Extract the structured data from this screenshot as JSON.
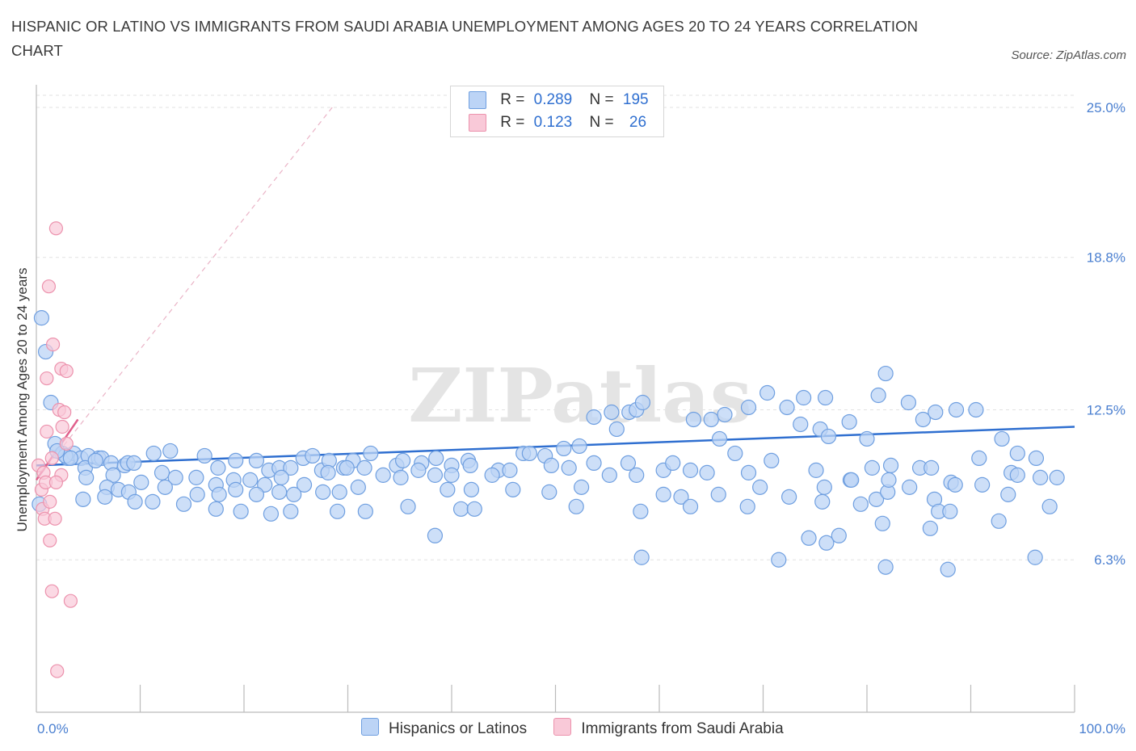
{
  "title": "HISPANIC OR LATINO VS IMMIGRANTS FROM SAUDI ARABIA UNEMPLOYMENT AMONG AGES 20 TO 24 YEARS CORRELATION CHART",
  "source": "Source: ZipAtlas.com",
  "watermark": "ZIPatlas",
  "legend_top": {
    "rows": [
      {
        "r_label": "R =",
        "r_value": "0.289",
        "n_label": "N =",
        "n_value": "195"
      },
      {
        "r_label": "R =",
        "r_value": "0.123",
        "n_label": "N =",
        "n_value": "26"
      }
    ]
  },
  "colors": {
    "blue_fill": "#bcd4f6",
    "blue_stroke": "#6f9fe0",
    "blue_line": "#2f6fd0",
    "pink_fill": "#f9c9d8",
    "pink_stroke": "#ec92ad",
    "pink_line": "#e0608c",
    "tick_text": "#4a7fd0",
    "grid": "#e2e2e2"
  },
  "chart_data": {
    "type": "scatter",
    "xlabel": "",
    "ylabel": "Unemployment Among Ages 20 to 24 years",
    "xlim": [
      0,
      100
    ],
    "ylim": [
      0,
      25.5
    ],
    "x_tick_labels": [
      "0.0%",
      "100.0%"
    ],
    "y_ticks": [
      6.3,
      12.5,
      18.8,
      25.0
    ],
    "y_tick_labels": [
      "6.3%",
      "12.5%",
      "18.8%",
      "25.0%"
    ],
    "grid": "horizontal dashed",
    "legend": "bottom-center",
    "series": [
      {
        "name": "Hispanics or Latinos",
        "color": "#bcd4f6",
        "trend": {
          "x": [
            0,
            100
          ],
          "y": [
            10.2,
            11.8
          ]
        },
        "points": [
          [
            0.5,
            16.3
          ],
          [
            0.9,
            14.9
          ],
          [
            1.4,
            12.8
          ],
          [
            1.8,
            11.1
          ],
          [
            2.5,
            10.7
          ],
          [
            3.0,
            10.5
          ],
          [
            3.6,
            10.7
          ],
          [
            2.8,
            10.6
          ],
          [
            4.3,
            10.5
          ],
          [
            5.0,
            10.6
          ],
          [
            4.7,
            10.1
          ],
          [
            6.0,
            10.5
          ],
          [
            6.3,
            10.5
          ],
          [
            7.2,
            10.3
          ],
          [
            8.5,
            10.2
          ],
          [
            8.8,
            10.3
          ],
          [
            9.4,
            10.3
          ],
          [
            11.3,
            10.7
          ],
          [
            12.9,
            10.8
          ],
          [
            16.2,
            10.6
          ],
          [
            17.5,
            10.1
          ],
          [
            19.2,
            10.4
          ],
          [
            21.2,
            10.4
          ],
          [
            22.4,
            10.0
          ],
          [
            23.4,
            10.1
          ],
          [
            24.5,
            10.1
          ],
          [
            25.7,
            10.5
          ],
          [
            26.6,
            10.6
          ],
          [
            27.5,
            10.0
          ],
          [
            28.2,
            10.4
          ],
          [
            29.6,
            10.1
          ],
          [
            30.5,
            10.4
          ],
          [
            32.2,
            10.7
          ],
          [
            34.7,
            10.2
          ],
          [
            35.3,
            10.4
          ],
          [
            37.1,
            10.3
          ],
          [
            38.5,
            10.5
          ],
          [
            40.0,
            10.2
          ],
          [
            41.6,
            10.4
          ],
          [
            44.5,
            10.0
          ],
          [
            46.9,
            10.7
          ],
          [
            49.0,
            10.6
          ],
          [
            50.8,
            10.9
          ],
          [
            52.3,
            11.0
          ],
          [
            53.7,
            12.2
          ],
          [
            55.4,
            12.4
          ],
          [
            57.1,
            12.4
          ],
          [
            57.8,
            12.5
          ],
          [
            55.9,
            11.7
          ],
          [
            58.4,
            12.8
          ],
          [
            63.3,
            12.1
          ],
          [
            65.0,
            12.1
          ],
          [
            65.8,
            11.3
          ],
          [
            66.3,
            12.3
          ],
          [
            67.3,
            10.7
          ],
          [
            68.6,
            12.6
          ],
          [
            70.4,
            13.2
          ],
          [
            72.3,
            12.6
          ],
          [
            73.6,
            11.9
          ],
          [
            75.5,
            11.7
          ],
          [
            76.0,
            13.0
          ],
          [
            78.3,
            12.0
          ],
          [
            80.0,
            11.3
          ],
          [
            81.1,
            13.1
          ],
          [
            81.8,
            14.0
          ],
          [
            84.0,
            12.8
          ],
          [
            85.4,
            12.1
          ],
          [
            86.6,
            12.4
          ],
          [
            88.6,
            12.5
          ],
          [
            90.5,
            12.5
          ],
          [
            93.0,
            11.3
          ],
          [
            94.5,
            10.7
          ],
          [
            96.3,
            10.5
          ],
          [
            2.0,
            10.8
          ],
          [
            3.3,
            10.5
          ],
          [
            4.8,
            9.7
          ],
          [
            5.7,
            10.4
          ],
          [
            7.4,
            9.8
          ],
          [
            10.1,
            9.5
          ],
          [
            12.1,
            9.9
          ],
          [
            13.4,
            9.7
          ],
          [
            15.4,
            9.7
          ],
          [
            17.3,
            9.4
          ],
          [
            19.0,
            9.6
          ],
          [
            20.6,
            9.6
          ],
          [
            22.0,
            9.4
          ],
          [
            23.6,
            9.7
          ],
          [
            25.8,
            9.4
          ],
          [
            28.1,
            9.9
          ],
          [
            29.9,
            10.1
          ],
          [
            31.6,
            10.1
          ],
          [
            33.4,
            9.8
          ],
          [
            35.1,
            9.7
          ],
          [
            36.8,
            10.0
          ],
          [
            38.4,
            9.8
          ],
          [
            40.0,
            9.8
          ],
          [
            41.8,
            10.2
          ],
          [
            43.9,
            9.8
          ],
          [
            45.6,
            10.0
          ],
          [
            47.5,
            10.7
          ],
          [
            49.6,
            10.2
          ],
          [
            51.3,
            10.1
          ],
          [
            53.7,
            10.3
          ],
          [
            55.2,
            9.8
          ],
          [
            57.0,
            10.3
          ],
          [
            57.8,
            9.8
          ],
          [
            60.4,
            10.0
          ],
          [
            61.3,
            10.3
          ],
          [
            63.0,
            10.0
          ],
          [
            64.6,
            9.9
          ],
          [
            68.6,
            9.9
          ],
          [
            70.8,
            10.4
          ],
          [
            75.1,
            10.0
          ],
          [
            78.4,
            9.6
          ],
          [
            80.5,
            10.1
          ],
          [
            82.3,
            10.2
          ],
          [
            85.1,
            10.1
          ],
          [
            88.1,
            9.5
          ],
          [
            90.8,
            10.5
          ],
          [
            93.9,
            9.9
          ],
          [
            6.8,
            9.3
          ],
          [
            7.9,
            9.2
          ],
          [
            8.9,
            9.1
          ],
          [
            12.4,
            9.3
          ],
          [
            15.5,
            9.0
          ],
          [
            17.6,
            9.0
          ],
          [
            19.2,
            9.2
          ],
          [
            21.2,
            9.0
          ],
          [
            23.4,
            9.1
          ],
          [
            24.8,
            9.0
          ],
          [
            27.6,
            9.1
          ],
          [
            29.2,
            9.1
          ],
          [
            31.0,
            9.3
          ],
          [
            39.6,
            9.2
          ],
          [
            41.9,
            9.2
          ],
          [
            45.9,
            9.2
          ],
          [
            49.4,
            9.1
          ],
          [
            52.5,
            9.3
          ],
          [
            60.4,
            9.0
          ],
          [
            62.1,
            8.9
          ],
          [
            65.7,
            9.0
          ],
          [
            69.7,
            9.3
          ],
          [
            72.5,
            8.9
          ],
          [
            75.9,
            9.3
          ],
          [
            78.5,
            9.6
          ],
          [
            80.9,
            8.8
          ],
          [
            82.0,
            9.1
          ],
          [
            84.1,
            9.3
          ],
          [
            86.5,
            8.8
          ],
          [
            93.6,
            9.0
          ],
          [
            94.5,
            9.8
          ],
          [
            96.7,
            9.7
          ],
          [
            98.3,
            9.7
          ],
          [
            4.5,
            8.8
          ],
          [
            6.6,
            8.9
          ],
          [
            9.5,
            8.7
          ],
          [
            11.2,
            8.7
          ],
          [
            14.2,
            8.6
          ],
          [
            17.3,
            8.4
          ],
          [
            19.7,
            8.3
          ],
          [
            22.6,
            8.2
          ],
          [
            24.5,
            8.3
          ],
          [
            29.0,
            8.3
          ],
          [
            31.7,
            8.3
          ],
          [
            35.8,
            8.5
          ],
          [
            40.9,
            8.4
          ],
          [
            42.2,
            8.4
          ],
          [
            52.0,
            8.5
          ],
          [
            58.2,
            8.3
          ],
          [
            63.0,
            8.5
          ],
          [
            68.5,
            8.5
          ],
          [
            75.7,
            8.7
          ],
          [
            79.4,
            8.6
          ],
          [
            86.9,
            8.3
          ],
          [
            88.0,
            8.3
          ],
          [
            92.7,
            7.9
          ],
          [
            97.6,
            8.5
          ],
          [
            0.3,
            8.6
          ],
          [
            38.4,
            7.3
          ],
          [
            58.3,
            6.4
          ],
          [
            71.5,
            6.3
          ],
          [
            74.4,
            7.2
          ],
          [
            76.1,
            7.0
          ],
          [
            77.3,
            7.3
          ],
          [
            81.5,
            7.8
          ],
          [
            86.1,
            7.6
          ],
          [
            96.2,
            6.4
          ],
          [
            81.8,
            6.0
          ],
          [
            87.8,
            5.9
          ],
          [
            73.9,
            13.0
          ],
          [
            76.3,
            11.4
          ],
          [
            82.1,
            9.6
          ],
          [
            86.2,
            10.1
          ],
          [
            88.5,
            9.4
          ],
          [
            91.1,
            9.4
          ]
        ]
      },
      {
        "name": "Immigrants from Saudi Arabia",
        "color": "#f9c9d8",
        "trend": {
          "x": [
            0,
            4
          ],
          "y": [
            9.6,
            12.1
          ]
        },
        "trend_extended": {
          "x": [
            0,
            28.5
          ],
          "y": [
            9.6,
            25.0
          ]
        },
        "points": [
          [
            0.2,
            10.2
          ],
          [
            0.5,
            9.2
          ],
          [
            0.7,
            9.9
          ],
          [
            0.6,
            8.4
          ],
          [
            0.9,
            9.5
          ],
          [
            1.2,
            17.6
          ],
          [
            1.6,
            15.2
          ],
          [
            1.9,
            20.0
          ],
          [
            1.0,
            13.8
          ],
          [
            2.4,
            14.2
          ],
          [
            2.9,
            14.1
          ],
          [
            2.2,
            12.5
          ],
          [
            2.7,
            12.4
          ],
          [
            1.0,
            11.6
          ],
          [
            2.5,
            11.8
          ],
          [
            2.9,
            11.1
          ],
          [
            1.5,
            10.5
          ],
          [
            2.4,
            9.8
          ],
          [
            1.3,
            8.7
          ],
          [
            1.9,
            9.5
          ],
          [
            0.8,
            8.0
          ],
          [
            1.8,
            8.0
          ],
          [
            1.3,
            7.1
          ],
          [
            1.5,
            5.0
          ],
          [
            3.3,
            4.6
          ],
          [
            2.0,
            1.7
          ]
        ]
      }
    ]
  },
  "bottom_legend": [
    {
      "label": "Hispanics or Latinos"
    },
    {
      "label": "Immigrants from Saudi Arabia"
    }
  ]
}
